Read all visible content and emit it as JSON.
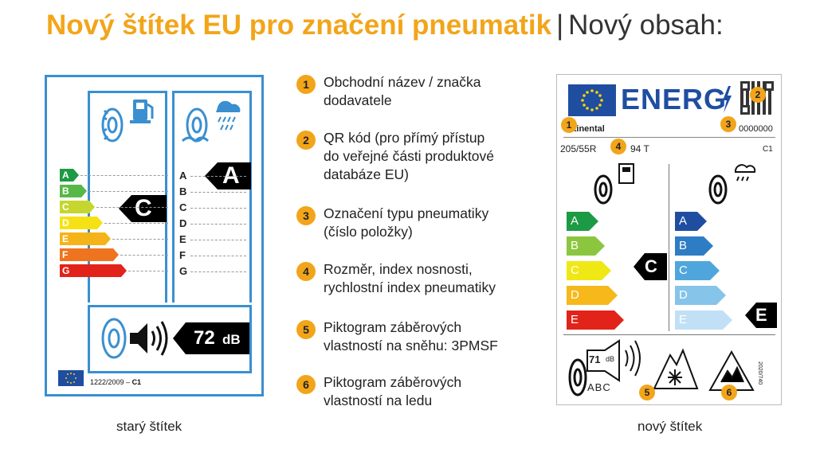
{
  "title": {
    "highlight": "Nový štítek EU pro značení pneumatik",
    "separator": "|",
    "subtitle": "Nový obsah:"
  },
  "old_label": {
    "fuel_classes": [
      "A",
      "B",
      "C",
      "D",
      "E",
      "F",
      "G"
    ],
    "fuel_rating": "C",
    "wet_classes": [
      "A",
      "B",
      "C",
      "D",
      "E",
      "F",
      "G"
    ],
    "wet_rating": "A",
    "noise_value": "72",
    "noise_unit": "dB",
    "regulation": "1222/2009 – ",
    "regulation_class": "C1",
    "caption": "starý štítek"
  },
  "items": [
    {
      "num": "1",
      "lines": [
        "Obchodní název / značka",
        "dodavatele"
      ]
    },
    {
      "num": "2",
      "lines": [
        "QR kód (pro přímý přístup",
        "do veřejné části produktové",
        "databáze EU)"
      ]
    },
    {
      "num": "3",
      "lines": [
        "Označení typu pneumatiky",
        "(číslo položky)"
      ]
    },
    {
      "num": "4",
      "lines": [
        "Rozměr, index nosnosti,",
        "rychlostní index pneumatiky"
      ]
    },
    {
      "num": "5",
      "lines": [
        "Piktogram záběrových",
        "vlastností na sněhu: 3PMSF"
      ]
    },
    {
      "num": "6",
      "lines": [
        "Piktogram záběrových",
        "vlastností na ledu"
      ]
    }
  ],
  "new_label": {
    "energy_text": "ENERG",
    "supplier": "ntinental",
    "type_id": "0000000",
    "size": "205/55R",
    "load_speed": "94 T",
    "tyre_class": "C1",
    "fuel_classes": [
      "A",
      "B",
      "C",
      "D",
      "E"
    ],
    "fuel_rating": "C",
    "wet_classes": [
      "A",
      "B",
      "C",
      "D",
      "E"
    ],
    "wet_rating": "E",
    "noise_value": "71",
    "noise_unit": "dB",
    "noise_classes": "ABC",
    "regulation": "2020/740",
    "badges": [
      "1",
      "2",
      "3",
      "4",
      "5",
      "6"
    ],
    "caption": "nový štítek"
  }
}
